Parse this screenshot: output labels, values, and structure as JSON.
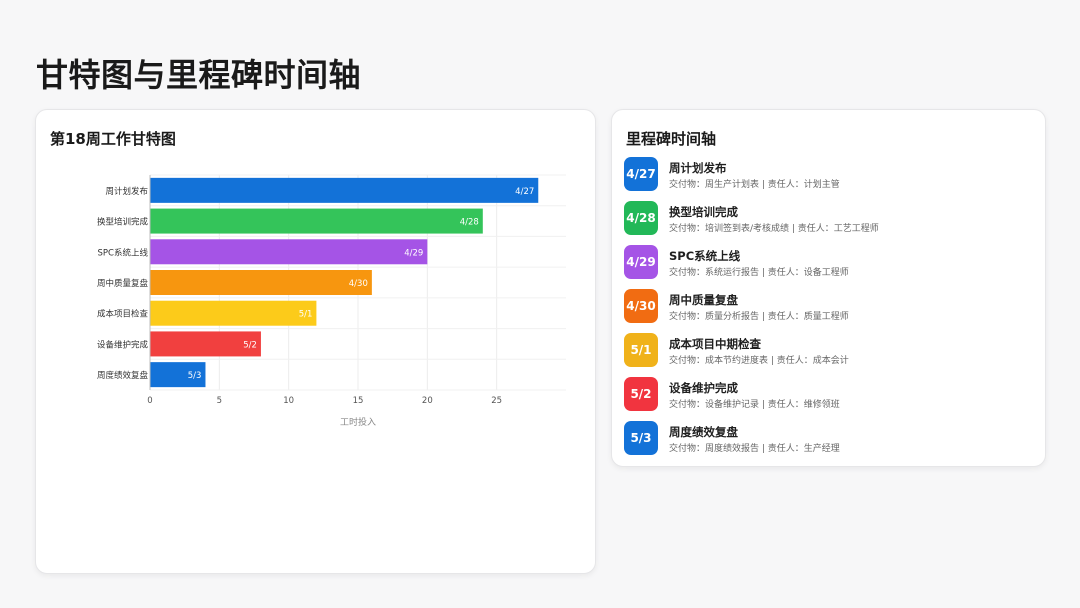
{
  "page": {
    "title": "甘特图与里程碑时间轴"
  },
  "gantt": {
    "title": "第18周工作甘特图"
  },
  "chart_data": {
    "type": "bar",
    "orientation": "horizontal",
    "title": "第18周工作甘特图",
    "xlabel": "工时投入",
    "ylabel": "",
    "xlim": [
      0,
      30
    ],
    "xticks": [
      0,
      5,
      10,
      15,
      20,
      25
    ],
    "grid": true,
    "categories": [
      "周计划发布",
      "换型培训完成",
      "SPC系统上线",
      "周中质量复盘",
      "成本项目检查",
      "设备维护完成",
      "周度绩效复盘"
    ],
    "values": [
      28,
      24,
      20,
      16,
      12,
      8,
      4
    ],
    "data_labels": [
      "4/27",
      "4/28",
      "4/29",
      "4/30",
      "5/1",
      "5/2",
      "5/3"
    ],
    "colors": [
      "#1372d8",
      "#34c45a",
      "#a554e6",
      "#f7960f",
      "#fccb1a",
      "#f1403f",
      "#1372d8"
    ]
  },
  "timeline": {
    "title": "里程碑时间轴",
    "items": [
      {
        "date": "4/27",
        "title": "周计划发布",
        "detail": "交付物：周生产计划表 | 责任人：计划主管",
        "color": "#1372d8"
      },
      {
        "date": "4/28",
        "title": "换型培训完成",
        "detail": "交付物：培训签到表/考核成绩 | 责任人：工艺工程师",
        "color": "#22b858"
      },
      {
        "date": "4/29",
        "title": "SPC系统上线",
        "detail": "交付物：系统运行报告 | 责任人：设备工程师",
        "color": "#a554e6"
      },
      {
        "date": "4/30",
        "title": "周中质量复盘",
        "detail": "交付物：质量分析报告 | 责任人：质量工程师",
        "color": "#f16c12"
      },
      {
        "date": "5/1",
        "title": "成本项目中期检查",
        "detail": "交付物：成本节约进度表 | 责任人：成本会计",
        "color": "#f0b21a"
      },
      {
        "date": "5/2",
        "title": "设备维护完成",
        "detail": "交付物：设备维护记录 | 责任人：维修领班",
        "color": "#f1343f"
      },
      {
        "date": "5/3",
        "title": "周度绩效复盘",
        "detail": "交付物：周度绩效报告 | 责任人：生产经理",
        "color": "#1372d8"
      }
    ]
  }
}
